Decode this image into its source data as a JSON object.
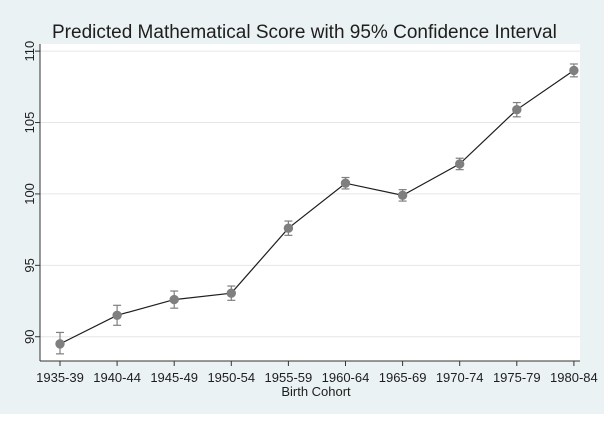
{
  "chart_data": {
    "type": "line",
    "title": "Predicted Mathematical Score with 95% Confidence Interval",
    "xlabel": "Birth Cohort",
    "ylabel": "",
    "categories": [
      "1935-39",
      "1940-44",
      "1945-49",
      "1950-54",
      "1955-59",
      "1960-64",
      "1965-69",
      "1970-74",
      "1975-79",
      "1980-84"
    ],
    "series": [
      {
        "values": [
          89.5,
          91.5,
          92.6,
          93.05,
          97.6,
          100.75,
          99.9,
          102.1,
          105.9,
          108.65
        ],
        "ci_low": [
          88.8,
          90.8,
          92.0,
          92.55,
          97.1,
          100.35,
          99.5,
          101.7,
          105.4,
          108.2
        ],
        "ci_high": [
          90.3,
          92.2,
          93.2,
          93.55,
          98.1,
          101.15,
          100.3,
          102.5,
          106.4,
          109.1
        ]
      }
    ],
    "ylim": [
      88.3,
      110.5
    ],
    "yticks": [
      90,
      95,
      100,
      105,
      110
    ],
    "grid": "horizontal",
    "colors": {
      "line": "#1e1e1e",
      "marker": "#7f7f7f",
      "errorbar": "#7f7f7f",
      "grid": "#e6e6e6",
      "plot_background": "#ffffff",
      "figure_background": "#eaf2f3"
    }
  }
}
